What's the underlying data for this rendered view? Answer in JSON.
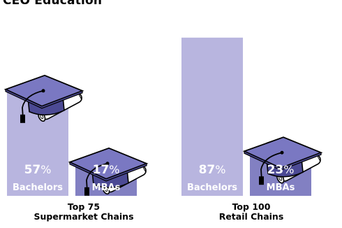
{
  "chart_data": {
    "type": "bar",
    "title": "CEO Education",
    "groups": [
      {
        "label_line1": "Top 75",
        "label_line2": "Supermarket Chains",
        "bars": [
          {
            "category": "Bachelors",
            "value": 57
          },
          {
            "category": "MBAs",
            "value": 17
          }
        ]
      },
      {
        "label_line1": "Top 100",
        "label_line2": "Retail Chains",
        "bars": [
          {
            "category": "Bachelors",
            "value": 87
          },
          {
            "category": "MBAs",
            "value": 23
          }
        ]
      }
    ],
    "value_suffix": "%",
    "colors": {
      "bachelors_bar": "#b8b5df",
      "mbas_bar": "#8280c2",
      "cap": "#7a78c2",
      "cap_dark": "#4c4a94",
      "label_text": "#ffffff"
    }
  }
}
